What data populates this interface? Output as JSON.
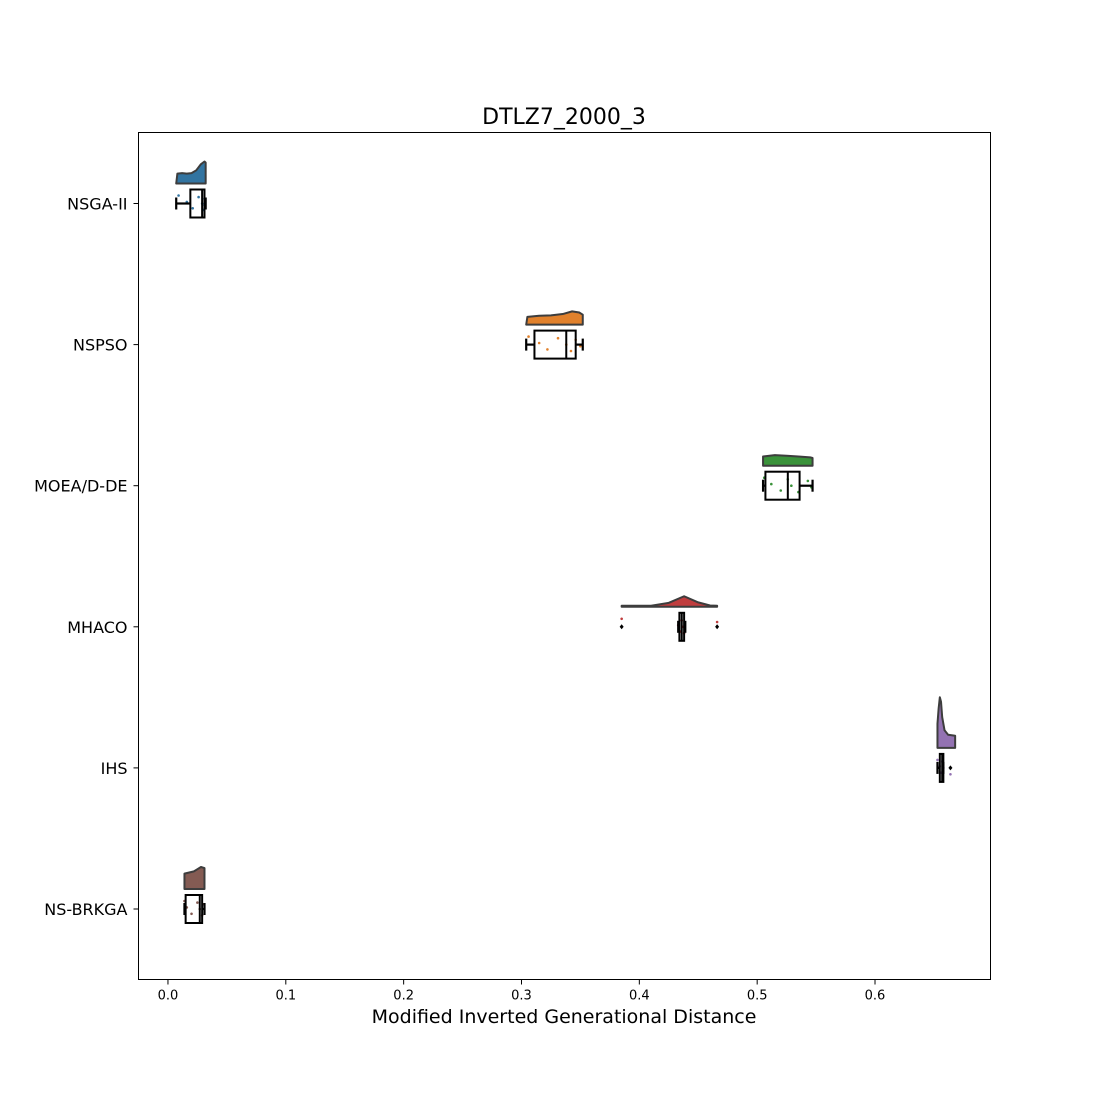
{
  "chart_data": {
    "type": "raincloud",
    "title": "DTLZ7_2000_3",
    "xlabel": "Modified Inverted Generational Distance",
    "ylabel": "",
    "xlim": [
      -0.025,
      0.698
    ],
    "xticks": [
      0.0,
      0.1,
      0.2,
      0.3,
      0.4,
      0.5,
      0.6
    ],
    "xtick_labels": [
      "0.0",
      "0.1",
      "0.2",
      "0.3",
      "0.4",
      "0.5",
      "0.6"
    ],
    "grid": false,
    "series": [
      {
        "name": "NSGA-II",
        "color": "#3274a1",
        "whisker_low": 0.007,
        "q1": 0.019,
        "median": 0.029,
        "q3": 0.031,
        "whisker_high": 0.032,
        "outliers": [],
        "density": [
          [
            0.007,
            0.0
          ],
          [
            0.008,
            0.45
          ],
          [
            0.012,
            0.47
          ],
          [
            0.016,
            0.45
          ],
          [
            0.02,
            0.47
          ],
          [
            0.024,
            0.6
          ],
          [
            0.028,
            0.88
          ],
          [
            0.031,
            1.0
          ],
          [
            0.032,
            0.95
          ],
          [
            0.032,
            0.0
          ]
        ],
        "points": [
          0.009,
          0.016,
          0.021,
          0.026,
          0.029,
          0.03,
          0.031,
          0.031
        ]
      },
      {
        "name": "NSPSO",
        "color": "#e1812c",
        "whisker_low": 0.304,
        "q1": 0.311,
        "median": 0.338,
        "q3": 0.346,
        "whisker_high": 0.352,
        "outliers": [],
        "density": [
          [
            0.304,
            0.0
          ],
          [
            0.305,
            0.35
          ],
          [
            0.315,
            0.4
          ],
          [
            0.325,
            0.42
          ],
          [
            0.335,
            0.48
          ],
          [
            0.343,
            0.6
          ],
          [
            0.349,
            0.55
          ],
          [
            0.352,
            0.45
          ],
          [
            0.352,
            0.0
          ]
        ],
        "points": [
          0.306,
          0.315,
          0.322,
          0.331,
          0.338,
          0.342,
          0.346,
          0.35
        ]
      },
      {
        "name": "MOEA/D-DE",
        "color": "#3a923a",
        "whisker_low": 0.505,
        "q1": 0.507,
        "median": 0.526,
        "q3": 0.536,
        "whisker_high": 0.547,
        "outliers": [],
        "density": [
          [
            0.505,
            0.0
          ],
          [
            0.505,
            0.42
          ],
          [
            0.515,
            0.48
          ],
          [
            0.525,
            0.45
          ],
          [
            0.535,
            0.42
          ],
          [
            0.545,
            0.38
          ],
          [
            0.547,
            0.35
          ],
          [
            0.547,
            0.0
          ]
        ],
        "points": [
          0.506,
          0.512,
          0.52,
          0.526,
          0.529,
          0.535,
          0.543,
          0.546
        ]
      },
      {
        "name": "MHACO",
        "color": "#c03d3e",
        "whisker_low": 0.433,
        "q1": 0.434,
        "median": 0.436,
        "q3": 0.438,
        "whisker_high": 0.439,
        "outliers": [
          0.385,
          0.466
        ],
        "density": [
          [
            0.385,
            0.0
          ],
          [
            0.385,
            0.05
          ],
          [
            0.41,
            0.05
          ],
          [
            0.425,
            0.18
          ],
          [
            0.438,
            0.48
          ],
          [
            0.45,
            0.2
          ],
          [
            0.46,
            0.06
          ],
          [
            0.466,
            0.05
          ],
          [
            0.466,
            0.0
          ]
        ],
        "points": [
          0.385,
          0.433,
          0.435,
          0.436,
          0.437,
          0.438,
          0.466
        ]
      },
      {
        "name": "IHS",
        "color": "#9372b2",
        "whisker_low": 0.653,
        "q1": 0.655,
        "median": 0.657,
        "q3": 0.658,
        "whisker_high": 0.658,
        "outliers": [
          0.664
        ],
        "density": [
          [
            0.653,
            0.0
          ],
          [
            0.653,
            1.1
          ],
          [
            0.654,
            1.8
          ],
          [
            0.655,
            2.3
          ],
          [
            0.656,
            2.1
          ],
          [
            0.657,
            1.4
          ],
          [
            0.659,
            0.8
          ],
          [
            0.662,
            0.6
          ],
          [
            0.668,
            0.55
          ],
          [
            0.668,
            0.0
          ]
        ],
        "points": [
          0.653,
          0.655,
          0.656,
          0.657,
          0.658,
          0.664
        ]
      },
      {
        "name": "NS-BRKGA",
        "color": "#845b53",
        "whisker_low": 0.014,
        "q1": 0.015,
        "median": 0.027,
        "q3": 0.029,
        "whisker_high": 0.031,
        "outliers": [],
        "density": [
          [
            0.014,
            0.0
          ],
          [
            0.014,
            0.7
          ],
          [
            0.018,
            0.75
          ],
          [
            0.022,
            0.8
          ],
          [
            0.025,
            0.9
          ],
          [
            0.028,
            1.0
          ],
          [
            0.031,
            0.95
          ],
          [
            0.031,
            0.0
          ]
        ],
        "points": [
          0.014,
          0.016,
          0.02,
          0.025,
          0.027,
          0.029,
          0.03
        ]
      }
    ]
  }
}
